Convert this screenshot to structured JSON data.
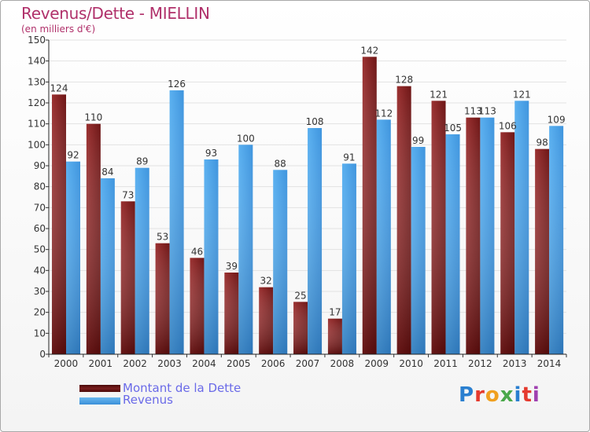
{
  "title": "Revenus/Dette - MIELLIN",
  "subtitle": "(en milliers d'€)",
  "logo": {
    "text": "Proxiti",
    "colors": [
      "#2a7fd0",
      "#e53a2e",
      "#f0a020",
      "#4aa84a",
      "#2a7fd0",
      "#e53a2e",
      "#a040b0"
    ]
  },
  "colors": {
    "dette": "#7a1e1e",
    "revenus": "#4aa0e6",
    "title": "#b0306a"
  },
  "legend": [
    {
      "label": "Montant de la Dette",
      "color": "#6b1414"
    },
    {
      "label": "Revenus",
      "color": "#4aa0e6"
    }
  ],
  "chart_data": {
    "type": "bar",
    "title": "Revenus/Dette - MIELLIN",
    "subtitle": "(en milliers d'€)",
    "categories": [
      "2000",
      "2001",
      "2002",
      "2003",
      "2004",
      "2005",
      "2006",
      "2007",
      "2008",
      "2009",
      "2010",
      "2011",
      "2012",
      "2013",
      "2014"
    ],
    "series": [
      {
        "name": "Montant de la Dette",
        "values": [
          124,
          110,
          73,
          53,
          46,
          39,
          32,
          25,
          17,
          142,
          128,
          121,
          113,
          106,
          98
        ]
      },
      {
        "name": "Revenus",
        "values": [
          92,
          84,
          89,
          126,
          93,
          100,
          88,
          108,
          91,
          112,
          99,
          105,
          113,
          121,
          109
        ]
      }
    ],
    "ylim": [
      0,
      150
    ],
    "yticks": [
      0,
      10,
      20,
      30,
      40,
      50,
      60,
      70,
      80,
      90,
      100,
      110,
      120,
      130,
      140,
      150
    ],
    "grid": true,
    "legend_position": "bottom-left"
  }
}
